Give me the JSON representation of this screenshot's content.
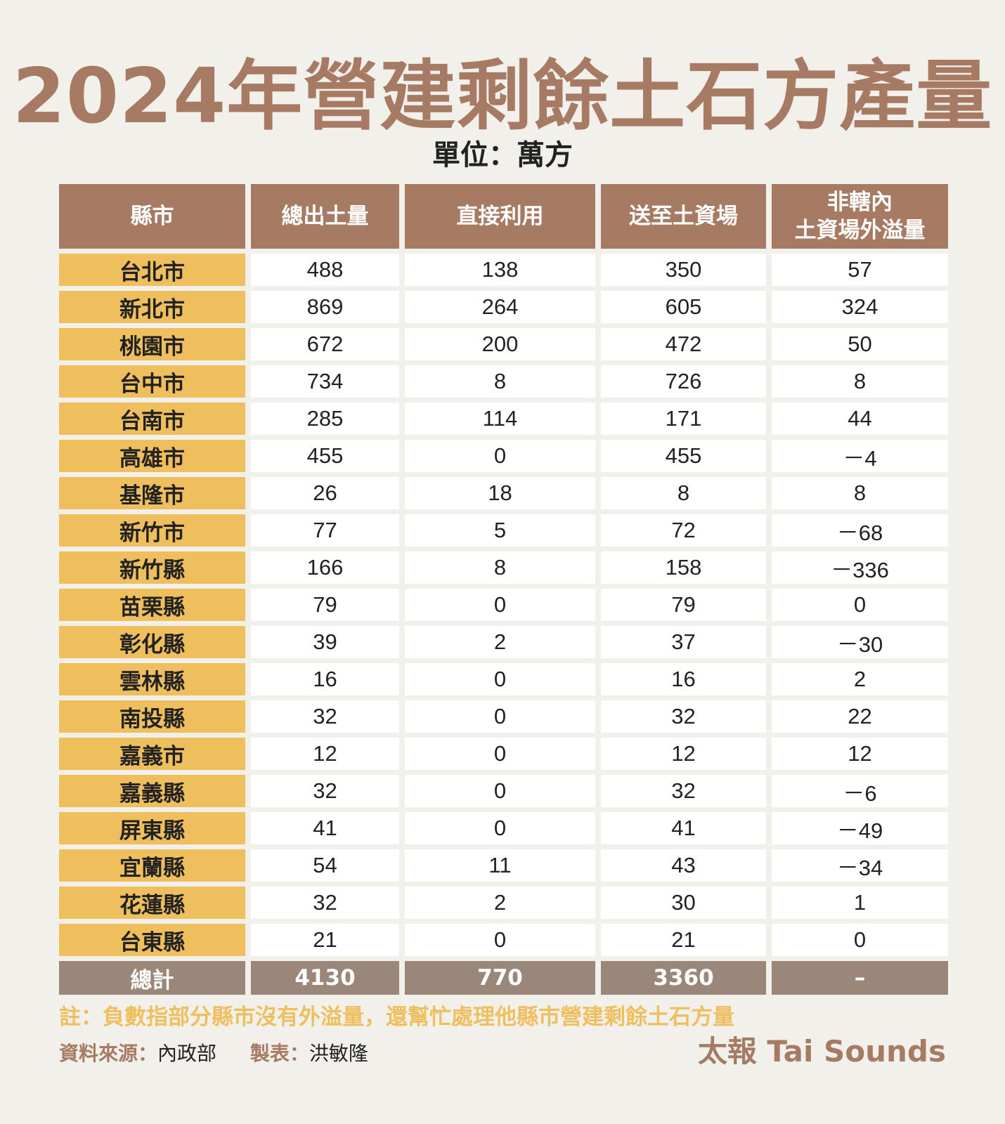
{
  "title": "2024年營建剩餘土石方產量",
  "unit": "單位：萬方",
  "headers": [
    "縣市",
    "總出土量",
    "直接利用",
    "送至土資場",
    "非轄內",
    "土資場外溢量"
  ],
  "rows": [
    {
      "name": "台北市",
      "v": [
        "488",
        "138",
        "350",
        "57"
      ]
    },
    {
      "name": "新北市",
      "v": [
        "869",
        "264",
        "605",
        "324"
      ]
    },
    {
      "name": "桃園市",
      "v": [
        "672",
        "200",
        "472",
        "50"
      ]
    },
    {
      "name": "台中市",
      "v": [
        "734",
        "8",
        "726",
        "8"
      ]
    },
    {
      "name": "台南市",
      "v": [
        "285",
        "114",
        "171",
        "44"
      ]
    },
    {
      "name": "高雄市",
      "v": [
        "455",
        "0",
        "455",
        "－4"
      ]
    },
    {
      "name": "基隆市",
      "v": [
        "26",
        "18",
        "8",
        "8"
      ]
    },
    {
      "name": "新竹市",
      "v": [
        "77",
        "5",
        "72",
        "－68"
      ]
    },
    {
      "name": "新竹縣",
      "v": [
        "166",
        "8",
        "158",
        "－336"
      ]
    },
    {
      "name": "苗栗縣",
      "v": [
        "79",
        "0",
        "79",
        "0"
      ]
    },
    {
      "name": "彰化縣",
      "v": [
        "39",
        "2",
        "37",
        "－30"
      ]
    },
    {
      "name": "雲林縣",
      "v": [
        "16",
        "0",
        "16",
        "2"
      ]
    },
    {
      "name": "南投縣",
      "v": [
        "32",
        "0",
        "32",
        "22"
      ]
    },
    {
      "name": "嘉義市",
      "v": [
        "12",
        "0",
        "12",
        "12"
      ]
    },
    {
      "name": "嘉義縣",
      "v": [
        "32",
        "0",
        "32",
        "－6"
      ]
    },
    {
      "name": "屏東縣",
      "v": [
        "41",
        "0",
        "41",
        "－49"
      ]
    },
    {
      "name": "宜蘭縣",
      "v": [
        "54",
        "11",
        "43",
        "－34"
      ]
    },
    {
      "name": "花蓮縣",
      "v": [
        "32",
        "2",
        "30",
        "1"
      ]
    },
    {
      "name": "台東縣",
      "v": [
        "21",
        "0",
        "21",
        "0"
      ]
    }
  ],
  "total": {
    "label": "總計",
    "v": [
      "4130",
      "770",
      "3360",
      "–"
    ]
  },
  "note": "註：負數指部分縣市沒有外溢量，還幫忙處理他縣市營建剩餘土石方量",
  "source_label": "資料來源：",
  "source_value": "內政部",
  "maker_label": "製表：",
  "maker_value": "洪敏隆",
  "brand": "太報 Tai Sounds",
  "colors": {
    "brown": "#a67a63",
    "yellow": "#f0bf5d",
    "total": "#9a8779",
    "bg": "#f1f0eb"
  }
}
